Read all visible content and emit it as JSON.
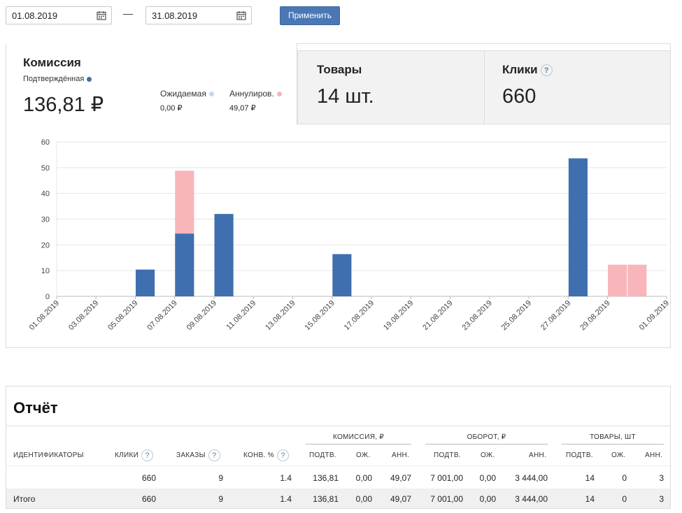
{
  "filters": {
    "date_from": "01.08.2019",
    "date_to": "31.08.2019",
    "apply_label": "Применить",
    "calendar_icon": "calendar-icon"
  },
  "cards": {
    "commission": {
      "title": "Комиссия",
      "confirmed_label": "Подтверждённая",
      "confirmed_value": "136,81 ₽",
      "pending_label": "Ожидаемая",
      "pending_value": "0,00 ₽",
      "cancelled_label": "Аннулиров.",
      "cancelled_value": "49,07 ₽",
      "colors": {
        "confirmed": "#3f6fae",
        "pending": "#c6d8ea",
        "cancelled": "#f4b4b9"
      }
    },
    "goods": {
      "title": "Товары",
      "value": "14 шт."
    },
    "clicks": {
      "title": "Клики",
      "value": "660",
      "help": "?"
    }
  },
  "chart_data": {
    "type": "bar",
    "stacked": true,
    "categories": [
      "01.08.2019",
      "02.08.2019",
      "03.08.2019",
      "04.08.2019",
      "05.08.2019",
      "06.08.2019",
      "07.08.2019",
      "08.08.2019",
      "09.08.2019",
      "10.08.2019",
      "11.08.2019",
      "12.08.2019",
      "13.08.2019",
      "14.08.2019",
      "15.08.2019",
      "16.08.2019",
      "17.08.2019",
      "18.08.2019",
      "19.08.2019",
      "20.08.2019",
      "21.08.2019",
      "22.08.2019",
      "23.08.2019",
      "24.08.2019",
      "25.08.2019",
      "26.08.2019",
      "27.08.2019",
      "28.08.2019",
      "29.08.2019",
      "30.08.2019",
      "31.08.2019",
      "01.09.2019"
    ],
    "tick_labels": [
      "01.08.2019",
      "03.08.2019",
      "05.08.2019",
      "07.08.2019",
      "09.08.2019",
      "11.08.2019",
      "13.08.2019",
      "15.08.2019",
      "17.08.2019",
      "19.08.2019",
      "21.08.2019",
      "23.08.2019",
      "25.08.2019",
      "27.08.2019",
      "29.08.2019",
      "01.09.2019"
    ],
    "series": [
      {
        "name": "Подтверждённая",
        "color": "#3f6fae",
        "values": [
          0,
          0,
          0,
          0,
          10.4,
          0,
          24.4,
          0,
          32,
          0,
          0,
          0,
          0,
          0,
          16.4,
          0,
          0,
          0,
          0,
          0,
          0,
          0,
          0,
          0,
          0,
          0,
          53.6,
          0,
          0,
          0,
          0,
          0
        ]
      },
      {
        "name": "Аннулиров.",
        "color": "#f8b5ba",
        "values": [
          0,
          0,
          0,
          0,
          0,
          0,
          24.4,
          0,
          0,
          0,
          0,
          0,
          0,
          0,
          0,
          0,
          0,
          0,
          0,
          0,
          0,
          0,
          0,
          0,
          0,
          0,
          0,
          0,
          12.3,
          12.3,
          0,
          0
        ]
      }
    ],
    "ylim": [
      0,
      60
    ],
    "yticks": [
      0,
      10,
      20,
      30,
      40,
      50,
      60
    ],
    "grid": true
  },
  "report": {
    "title": "Отчёт",
    "headers": {
      "identifiers": "ИДЕНТИФИКАТОРЫ",
      "clicks": "КЛИКИ",
      "orders": "ЗАКАЗЫ",
      "conv": "КОНВ. %",
      "commission_group": "КОМИССИЯ, ₽",
      "turnover_group": "ОБОРОТ, ₽",
      "goods_group": "ТОВАРЫ, ШТ",
      "confirmed": "ПОДТВ.",
      "pending": "ОЖ.",
      "cancelled": "АНН.",
      "help": "?"
    },
    "rows": [
      {
        "id": "",
        "clicks": "660",
        "orders": "9",
        "conv": "1.4",
        "c_conf": "136,81",
        "c_pend": "0,00",
        "c_canc": "49,07",
        "t_conf": "7 001,00",
        "t_pend": "0,00",
        "t_canc": "3 444,00",
        "g_conf": "14",
        "g_pend": "0",
        "g_canc": "3"
      }
    ],
    "total": {
      "id": "Итого",
      "clicks": "660",
      "orders": "9",
      "conv": "1.4",
      "c_conf": "136,81",
      "c_pend": "0,00",
      "c_canc": "49,07",
      "t_conf": "7 001,00",
      "t_pend": "0,00",
      "t_canc": "3 444,00",
      "g_conf": "14",
      "g_pend": "0",
      "g_canc": "3"
    }
  }
}
